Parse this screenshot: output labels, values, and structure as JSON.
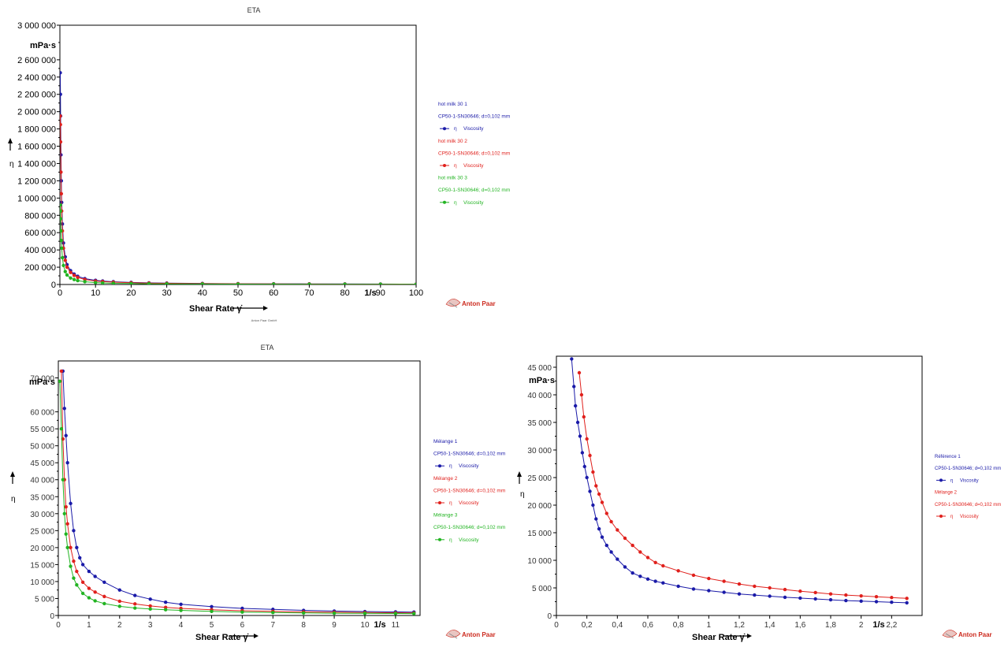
{
  "chart_data": [
    {
      "type": "scatter",
      "title": "ETA",
      "footer": "Anton Paar GmbH",
      "logo_text": "Anton Paar",
      "ylabel": "η",
      "y_unit": "mPa·s",
      "xlabel": "Shear Rate γ̇",
      "x_unit": "1/s",
      "xlim": [
        0,
        100
      ],
      "ylim": [
        0,
        3000000
      ],
      "x_ticks": [
        0,
        10,
        20,
        30,
        40,
        50,
        60,
        70,
        80,
        90,
        100
      ],
      "x_tick_labels": [
        "0",
        "10",
        "20",
        "30",
        "40",
        "50",
        "60",
        "70",
        "80",
        "90",
        "100"
      ],
      "y_ticks": [
        0,
        200000,
        400000,
        600000,
        800000,
        1000000,
        1200000,
        1400000,
        1600000,
        1800000,
        2000000,
        2200000,
        2400000,
        2600000,
        3000000
      ],
      "y_tick_labels": [
        "0",
        "200 000",
        "400 000",
        "600 000",
        "800 000",
        "1 000 000",
        "1 200 000",
        "1 400 000",
        "1 600 000",
        "1 800 000",
        "2 000 000",
        "2 200 000",
        "2 400 000",
        "2 600 000",
        "3 000 000"
      ],
      "legend": [
        {
          "name": "hot milk 30 1",
          "geometry": "CP50-1-SN30646; d=0,102 mm",
          "param": "Viscosity",
          "symbol": "η",
          "color": "#1a1aa8"
        },
        {
          "name": "hot milk 30 2",
          "geometry": "CP50-1-SN30646; d=0,102 mm",
          "param": "Viscosity",
          "symbol": "η",
          "color": "#e0201c"
        },
        {
          "name": "hot milk 30 3",
          "geometry": "CP50-1-SN30646; d=0,102 mm",
          "param": "Viscosity",
          "symbol": "η",
          "color": "#22b422"
        }
      ],
      "series": [
        {
          "name": "hot milk 30 1",
          "color": "#1a1aa8",
          "x": [
            0.1,
            0.15,
            0.2,
            0.3,
            0.4,
            0.5,
            0.7,
            1,
            1.5,
            2,
            3,
            4,
            5,
            7,
            10,
            12,
            15,
            20,
            25,
            30,
            40,
            50,
            60,
            70,
            80,
            90,
            100
          ],
          "y": [
            2450000,
            2200000,
            1950000,
            1500000,
            1200000,
            950000,
            700000,
            480000,
            320000,
            230000,
            160000,
            120000,
            95000,
            68000,
            48000,
            40000,
            32000,
            24000,
            19000,
            16000,
            12000,
            9500,
            8000,
            6900,
            6000,
            5300,
            4800
          ]
        },
        {
          "name": "hot milk 30 2",
          "color": "#e0201c",
          "x": [
            0.1,
            0.15,
            0.2,
            0.3,
            0.4,
            0.5,
            0.7,
            1,
            1.5,
            2,
            3,
            4,
            5,
            7,
            10,
            12,
            15,
            20,
            25,
            30,
            40,
            50,
            60,
            70,
            80,
            90,
            100
          ],
          "y": [
            1950000,
            1850000,
            1650000,
            1300000,
            1050000,
            850000,
            620000,
            420000,
            280000,
            200000,
            140000,
            105000,
            82000,
            58000,
            40000,
            34000,
            27000,
            20000,
            16000,
            13500,
            10000,
            8000,
            6700,
            5700,
            5000,
            4400,
            4000
          ]
        },
        {
          "name": "hot milk 30 3",
          "color": "#22b422",
          "x": [
            0.1,
            0.15,
            0.2,
            0.3,
            0.4,
            0.5,
            0.7,
            1,
            1.5,
            2,
            3,
            4,
            5,
            7,
            10,
            12,
            15,
            20,
            25,
            30,
            40,
            50,
            60,
            70,
            80,
            90,
            100
          ],
          "y": [
            920000,
            850000,
            760000,
            620000,
            510000,
            420000,
            310000,
            220000,
            150000,
            110000,
            75000,
            57000,
            45000,
            32000,
            22000,
            18000,
            14000,
            10500,
            8500,
            7000,
            5200,
            4200,
            3500,
            3000,
            2600,
            2300,
            2100
          ]
        }
      ]
    },
    {
      "type": "scatter",
      "title": "ETA",
      "logo_text": "Anton Paar",
      "ylabel": "η",
      "y_unit": "mPa·s",
      "xlabel": "Shear Rate γ̇",
      "x_unit": "1/s",
      "xlim": [
        0,
        11.8
      ],
      "ylim": [
        0,
        75000
      ],
      "x_ticks": [
        0,
        1,
        2,
        3,
        4,
        5,
        6,
        7,
        8,
        9,
        10,
        11
      ],
      "x_tick_labels": [
        "0",
        "1",
        "2",
        "3",
        "4",
        "5",
        "6",
        "7",
        "8",
        "9",
        "10",
        "11"
      ],
      "y_ticks": [
        0,
        5000,
        10000,
        15000,
        20000,
        25000,
        30000,
        35000,
        40000,
        45000,
        50000,
        55000,
        60000,
        70000
      ],
      "y_tick_labels": [
        "0",
        "5 000",
        "10 000",
        "15 000",
        "20 000",
        "25 000",
        "30 000",
        "35 000",
        "40 000",
        "45 000",
        "50 000",
        "55 000",
        "60 000",
        "70 000"
      ],
      "legend": [
        {
          "name": "Mélange 1",
          "geometry": "CP50-1-SN30646; d=0,102 mm",
          "param": "Viscosity",
          "symbol": "η",
          "color": "#1a1aa8"
        },
        {
          "name": "Mélange 2",
          "geometry": "CP50-1-SN30646; d=0,102 mm",
          "param": "Viscosity",
          "symbol": "η",
          "color": "#e0201c"
        },
        {
          "name": "Mélange 3",
          "geometry": "CP50-1-SN30646; d=0,102 mm",
          "param": "Viscosity",
          "symbol": "η",
          "color": "#22b422"
        }
      ],
      "series": [
        {
          "name": "Mélange 1",
          "color": "#1a1aa8",
          "x": [
            0.15,
            0.2,
            0.25,
            0.3,
            0.4,
            0.5,
            0.6,
            0.7,
            0.8,
            1,
            1.2,
            1.5,
            2,
            2.5,
            3,
            3.5,
            4,
            5,
            6,
            7,
            8,
            9,
            10,
            11,
            11.6
          ],
          "y": [
            72000,
            61000,
            53000,
            45000,
            33000,
            25000,
            20000,
            17000,
            15000,
            13000,
            11500,
            9800,
            7500,
            5900,
            4800,
            3900,
            3300,
            2600,
            2100,
            1800,
            1500,
            1300,
            1150,
            1050,
            1000
          ]
        },
        {
          "name": "Mélange 2",
          "color": "#e0201c",
          "x": [
            0.1,
            0.15,
            0.2,
            0.25,
            0.3,
            0.4,
            0.5,
            0.6,
            0.8,
            1,
            1.2,
            1.5,
            2,
            2.5,
            3,
            3.5,
            4,
            5,
            6,
            7,
            8,
            9,
            10,
            11,
            11.6
          ],
          "y": [
            72000,
            52000,
            40000,
            32000,
            27000,
            20000,
            16000,
            13000,
            9800,
            8000,
            6900,
            5600,
            4200,
            3400,
            2800,
            2400,
            2100,
            1700,
            1400,
            1200,
            1050,
            950,
            850,
            780,
            750
          ]
        },
        {
          "name": "Mélange 3",
          "color": "#22b422",
          "x": [
            0.05,
            0.1,
            0.15,
            0.2,
            0.25,
            0.3,
            0.4,
            0.5,
            0.6,
            0.8,
            1,
            1.2,
            1.5,
            2,
            2.5,
            3,
            3.5,
            4,
            5,
            6,
            7,
            8,
            9,
            10,
            11,
            11.6
          ],
          "y": [
            69000,
            55000,
            40000,
            30000,
            24000,
            20000,
            14500,
            11000,
            9000,
            6500,
            5200,
            4300,
            3500,
            2700,
            2200,
            1900,
            1700,
            1500,
            1200,
            1000,
            850,
            750,
            680,
            620,
            580,
            560
          ]
        }
      ]
    },
    {
      "type": "scatter",
      "logo_text": "Anton Paar",
      "ylabel": "η",
      "y_unit": "mPa·s",
      "xlabel": "Shear Rate γ̇",
      "x_unit": "1/s",
      "xlim": [
        0,
        2.4
      ],
      "ylim": [
        0,
        47000
      ],
      "x_ticks": [
        0,
        0.2,
        0.4,
        0.6,
        0.8,
        1,
        1.2,
        1.4,
        1.6,
        1.8,
        2,
        2.2
      ],
      "x_tick_labels": [
        "0",
        "0,2",
        "0,4",
        "0,6",
        "0,8",
        "1",
        "1,2",
        "1,4",
        "1,6",
        "1,8",
        "2",
        "2,2"
      ],
      "y_ticks": [
        0,
        5000,
        10000,
        15000,
        20000,
        25000,
        30000,
        35000,
        40000,
        45000
      ],
      "y_tick_labels": [
        "0",
        "5 000",
        "10 000",
        "15 000",
        "20 000",
        "25 000",
        "30 000",
        "35 000",
        "40 000",
        "45 000"
      ],
      "legend": [
        {
          "name": "Référence 1",
          "geometry": "CP50-1-SN30646; d=0,102 mm",
          "param": "Viscosity",
          "symbol": "η",
          "color": "#1a1aa8"
        },
        {
          "name": "Mélange 2",
          "geometry": "CP50-1-SN30646; d=0,102 mm",
          "param": "Viscosity",
          "symbol": "η",
          "color": "#e0201c"
        }
      ],
      "series": [
        {
          "name": "Référence 1",
          "color": "#1a1aa8",
          "x": [
            0.1,
            0.115,
            0.125,
            0.14,
            0.155,
            0.17,
            0.185,
            0.2,
            0.22,
            0.24,
            0.26,
            0.28,
            0.3,
            0.33,
            0.36,
            0.4,
            0.45,
            0.5,
            0.55,
            0.6,
            0.65,
            0.7,
            0.8,
            0.9,
            1,
            1.1,
            1.2,
            1.3,
            1.4,
            1.5,
            1.6,
            1.7,
            1.8,
            1.9,
            2,
            2.1,
            2.2,
            2.3
          ],
          "y": [
            46500,
            41500,
            38000,
            35000,
            32500,
            29500,
            27000,
            25000,
            22500,
            20000,
            17500,
            15700,
            14200,
            12700,
            11500,
            10200,
            8800,
            7700,
            7100,
            6600,
            6200,
            5900,
            5300,
            4800,
            4500,
            4200,
            3900,
            3700,
            3500,
            3300,
            3150,
            3000,
            2850,
            2700,
            2600,
            2500,
            2400,
            2300
          ]
        },
        {
          "name": "Mélange 2",
          "color": "#e0201c",
          "x": [
            0.15,
            0.165,
            0.18,
            0.2,
            0.22,
            0.24,
            0.26,
            0.28,
            0.3,
            0.33,
            0.36,
            0.4,
            0.45,
            0.5,
            0.55,
            0.6,
            0.65,
            0.7,
            0.8,
            0.9,
            1,
            1.1,
            1.2,
            1.3,
            1.4,
            1.5,
            1.6,
            1.7,
            1.8,
            1.9,
            2,
            2.1,
            2.2,
            2.3
          ],
          "y": [
            44000,
            40000,
            36000,
            32000,
            29000,
            26000,
            23500,
            22000,
            20500,
            18500,
            17000,
            15500,
            14000,
            12700,
            11500,
            10500,
            9600,
            9000,
            8100,
            7300,
            6700,
            6200,
            5700,
            5300,
            5000,
            4700,
            4400,
            4150,
            3900,
            3700,
            3550,
            3400,
            3250,
            3100
          ]
        }
      ]
    }
  ]
}
